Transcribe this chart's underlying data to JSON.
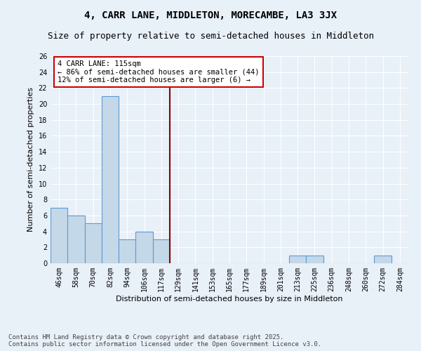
{
  "title": "4, CARR LANE, MIDDLETON, MORECAMBE, LA3 3JX",
  "subtitle": "Size of property relative to semi-detached houses in Middleton",
  "xlabel": "Distribution of semi-detached houses by size in Middleton",
  "ylabel": "Number of semi-detached properties",
  "categories": [
    "46sqm",
    "58sqm",
    "70sqm",
    "82sqm",
    "94sqm",
    "106sqm",
    "117sqm",
    "129sqm",
    "141sqm",
    "153sqm",
    "165sqm",
    "177sqm",
    "189sqm",
    "201sqm",
    "213sqm",
    "225sqm",
    "236sqm",
    "248sqm",
    "260sqm",
    "272sqm",
    "284sqm"
  ],
  "values": [
    7,
    6,
    5,
    21,
    3,
    4,
    3,
    0,
    0,
    0,
    0,
    0,
    0,
    0,
    1,
    1,
    0,
    0,
    0,
    1,
    0
  ],
  "bar_color": "#c5d8e8",
  "bar_edge_color": "#5b9bd5",
  "bg_color": "#e8f0f8",
  "grid_color": "#ffffff",
  "vline_color": "#8b0000",
  "annotation_text": "4 CARR LANE: 115sqm\n← 86% of semi-detached houses are smaller (44)\n12% of semi-detached houses are larger (6) →",
  "annotation_box_color": "#ffffff",
  "annotation_box_edge": "#cc0000",
  "ylim": [
    0,
    26
  ],
  "yticks": [
    0,
    2,
    4,
    6,
    8,
    10,
    12,
    14,
    16,
    18,
    20,
    22,
    24,
    26
  ],
  "footer": "Contains HM Land Registry data © Crown copyright and database right 2025.\nContains public sector information licensed under the Open Government Licence v3.0.",
  "title_fontsize": 10,
  "subtitle_fontsize": 9,
  "axis_label_fontsize": 8,
  "tick_fontsize": 7,
  "annotation_fontsize": 7.5,
  "footer_fontsize": 6.5
}
